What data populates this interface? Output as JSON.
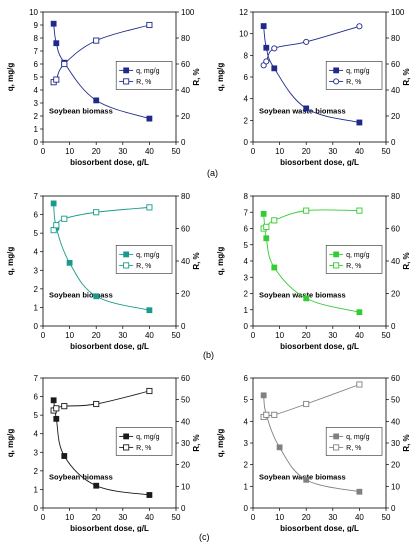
{
  "panel_labels": [
    "(a)",
    "(b)",
    "(c)"
  ],
  "chart_data": [
    {
      "type": "line",
      "xlabel": "biosorbent dose, g/L",
      "ylabel": "q, mg/g",
      "y2label": "R, %",
      "title": "Soybean biomass",
      "xlim": [
        0,
        50
      ],
      "xticks": [
        0,
        10,
        20,
        30,
        40,
        50
      ],
      "ylim": [
        0,
        10
      ],
      "yticks": [
        0,
        1,
        2,
        3,
        4,
        5,
        6,
        7,
        8,
        9,
        10
      ],
      "y2lim": [
        0,
        100
      ],
      "y2ticks": [
        0,
        20,
        40,
        60,
        80,
        100
      ],
      "legend_position": "center-right",
      "color": "#1f2a8a",
      "series": [
        {
          "name": "q, mg/g",
          "axis": "left",
          "marker": "filled-square",
          "x": [
            4,
            5,
            8,
            20,
            40
          ],
          "y": [
            9.1,
            7.6,
            6.1,
            3.2,
            1.8
          ]
        },
        {
          "name": "R, %",
          "axis": "right",
          "marker": "open-square",
          "x": [
            4,
            5,
            8,
            20,
            40
          ],
          "y": [
            46,
            48,
            60,
            78,
            90
          ]
        }
      ]
    },
    {
      "type": "line",
      "xlabel": "biosorbent dose, g/L",
      "ylabel": "q, mg/g",
      "y2label": "R, %",
      "title": "Soybean waste biomass",
      "xlim": [
        0,
        50
      ],
      "xticks": [
        0,
        10,
        20,
        30,
        40,
        50
      ],
      "ylim": [
        0,
        12
      ],
      "yticks": [
        0,
        2,
        4,
        6,
        8,
        10,
        12
      ],
      "y2lim": [
        0,
        100
      ],
      "y2ticks": [
        0,
        20,
        40,
        60,
        80,
        100
      ],
      "legend_position": "center-right",
      "color": "#1f2a8a",
      "series": [
        {
          "name": "q, mg/g",
          "axis": "left",
          "marker": "filled-square",
          "x": [
            4,
            5,
            8,
            20,
            40
          ],
          "y": [
            10.7,
            8.7,
            6.8,
            3.1,
            1.8
          ]
        },
        {
          "name": "R, %",
          "axis": "right",
          "marker": "open-circle",
          "x": [
            4,
            5,
            8,
            20,
            40
          ],
          "y": [
            59,
            62,
            72,
            77,
            89
          ]
        }
      ]
    },
    {
      "type": "line",
      "xlabel": "biosorbent dose, g/L",
      "ylabel": "q, mg/g",
      "y2label": "R, %",
      "title": "Soybean biomass",
      "xlim": [
        0,
        50
      ],
      "xticks": [
        0,
        10,
        20,
        30,
        40,
        50
      ],
      "ylim": [
        0,
        7
      ],
      "yticks": [
        0,
        1,
        2,
        3,
        4,
        5,
        6,
        7
      ],
      "y2lim": [
        0,
        80
      ],
      "y2ticks": [
        0,
        20,
        40,
        60,
        80
      ],
      "legend_position": "center-right",
      "color": "#1a9a8c",
      "series": [
        {
          "name": "q, mg/g",
          "axis": "left",
          "marker": "filled-square",
          "x": [
            4,
            5,
            10,
            20,
            40
          ],
          "y": [
            6.6,
            5.3,
            3.4,
            1.6,
            0.85
          ]
        },
        {
          "name": "R, %",
          "axis": "right",
          "marker": "open-square",
          "x": [
            4,
            5,
            8,
            20,
            40
          ],
          "y": [
            59,
            62,
            66,
            70,
            73
          ]
        }
      ]
    },
    {
      "type": "line",
      "xlabel": "biosorbent dose, g/L",
      "ylabel": "q, mg/g",
      "y2label": "R, %",
      "title": "Soybean waste biomass",
      "xlim": [
        0,
        50
      ],
      "xticks": [
        0,
        10,
        20,
        30,
        40,
        50
      ],
      "ylim": [
        0,
        8
      ],
      "yticks": [
        0,
        1,
        2,
        3,
        4,
        5,
        6,
        7,
        8
      ],
      "y2lim": [
        0,
        80
      ],
      "y2ticks": [
        0,
        20,
        40,
        60,
        80
      ],
      "legend_position": "center-right",
      "color": "#33cc33",
      "series": [
        {
          "name": "q, mg/g",
          "axis": "left",
          "marker": "filled-square",
          "x": [
            4,
            5,
            8,
            20,
            40
          ],
          "y": [
            6.9,
            5.4,
            3.6,
            1.7,
            0.85
          ]
        },
        {
          "name": "R, %",
          "axis": "right",
          "marker": "open-square",
          "x": [
            4,
            5,
            8,
            20,
            40
          ],
          "y": [
            60,
            61,
            65,
            71,
            71
          ]
        }
      ]
    },
    {
      "type": "line",
      "xlabel": "biosorbent dose, g/L",
      "ylabel": "q, mg/g",
      "y2label": "R, %",
      "title": "Soybean biomass",
      "xlim": [
        0,
        50
      ],
      "xticks": [
        0,
        10,
        20,
        30,
        40,
        50
      ],
      "ylim": [
        0,
        7
      ],
      "yticks": [
        0,
        1,
        2,
        3,
        4,
        5,
        6,
        7
      ],
      "y2lim": [
        0,
        60
      ],
      "y2ticks": [
        0,
        10,
        20,
        30,
        40,
        50,
        60
      ],
      "legend_position": "center-right",
      "color": "#1a1a1a",
      "series": [
        {
          "name": "q, mg/g",
          "axis": "left",
          "marker": "filled-square",
          "x": [
            4,
            5,
            8,
            20,
            40
          ],
          "y": [
            5.8,
            4.8,
            2.8,
            1.2,
            0.7
          ]
        },
        {
          "name": "R, %",
          "axis": "right",
          "marker": "open-square",
          "x": [
            4,
            5,
            8,
            20,
            40
          ],
          "y": [
            45,
            46,
            47,
            48,
            54
          ]
        }
      ]
    },
    {
      "type": "line",
      "xlabel": "biosorbent dose, g/L",
      "ylabel": "q, mg/g",
      "y2label": "R, %",
      "title": "Soybean waste biomass",
      "xlim": [
        0,
        50
      ],
      "xticks": [
        0,
        10,
        20,
        30,
        40,
        50
      ],
      "ylim": [
        0,
        6
      ],
      "yticks": [
        0,
        1,
        2,
        3,
        4,
        5,
        6
      ],
      "y2lim": [
        0,
        60
      ],
      "y2ticks": [
        0,
        10,
        20,
        30,
        40,
        50,
        60
      ],
      "legend_position": "center-right",
      "color": "#808080",
      "series": [
        {
          "name": "q, mg/g",
          "axis": "left",
          "marker": "filled-square",
          "x": [
            4,
            5,
            10,
            20,
            40
          ],
          "y": [
            5.2,
            4.3,
            2.8,
            1.3,
            0.75
          ]
        },
        {
          "name": "R, %",
          "axis": "right",
          "marker": "open-square",
          "x": [
            4,
            5,
            8,
            20,
            40
          ],
          "y": [
            42,
            43,
            43,
            48,
            57
          ]
        }
      ]
    }
  ]
}
